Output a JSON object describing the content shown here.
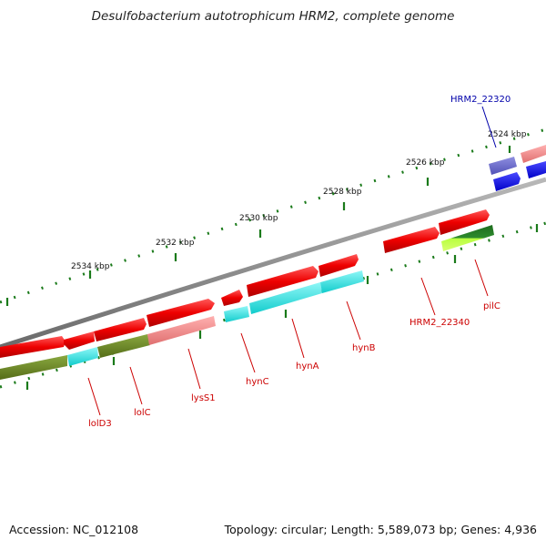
{
  "title": "Desulfobacterium autotrophicum HRM2, complete genome",
  "footer": {
    "accession": "Accession: NC_012108",
    "summary": "Topology: circular; Length: 5,589,073 bp; Genes: 4,936"
  },
  "colors": {
    "backbone": "#8a8a8a",
    "forward_cds": "#ee0000",
    "pseudo_cds": "#f08080",
    "cyan_track": "#22dddd",
    "olive_track": "#6b8a22",
    "blue_gene": "#1010ee",
    "label_red": "#cc0000",
    "label_blue": "#0000aa",
    "tick_green": "#1a7a1a"
  },
  "scale_labels": [
    "2524 kbp",
    "2526 kbp",
    "2528 kbp",
    "2530 kbp",
    "2532 kbp",
    "2534 kbp"
  ],
  "gene_labels": [
    {
      "text": "HRM2_22320",
      "color": "blue"
    },
    {
      "text": "HRM2_22340",
      "color": "red"
    },
    {
      "text": "pilC",
      "color": "red"
    },
    {
      "text": "hynB",
      "color": "red"
    },
    {
      "text": "hynA",
      "color": "red"
    },
    {
      "text": "hynC",
      "color": "red"
    },
    {
      "text": "lysS1",
      "color": "red"
    },
    {
      "text": "lolC",
      "color": "red"
    },
    {
      "text": "lolD3",
      "color": "red"
    }
  ]
}
